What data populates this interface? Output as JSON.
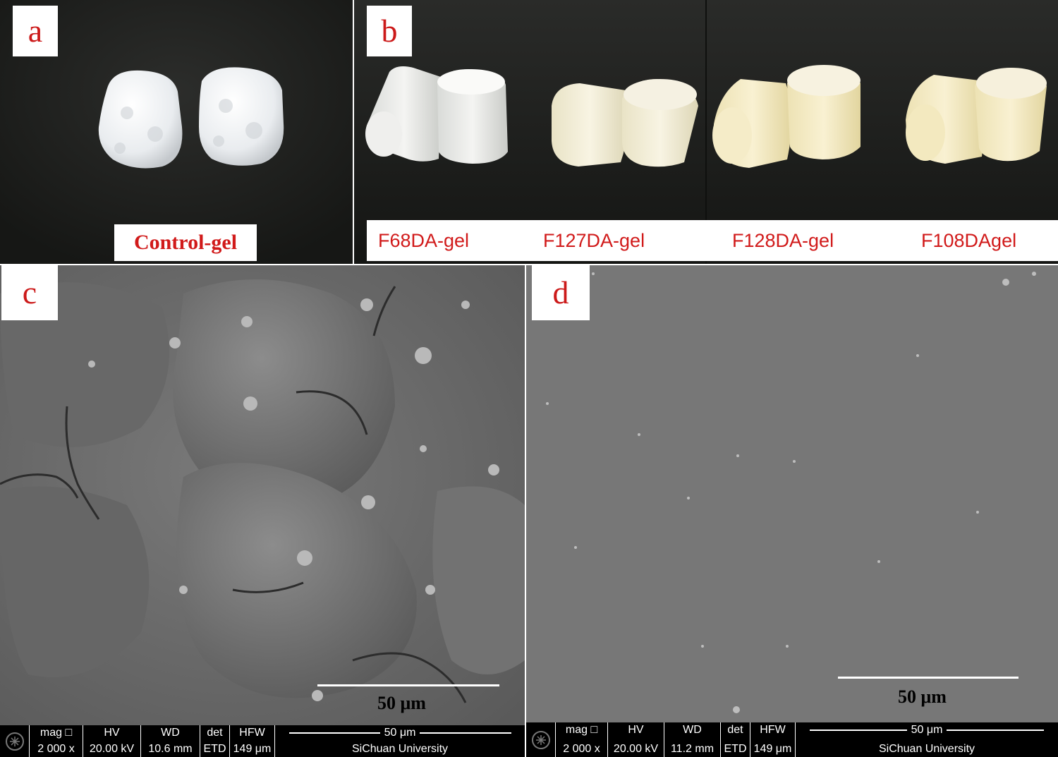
{
  "panels": {
    "a": {
      "label": "a",
      "caption": "Control-gel"
    },
    "b": {
      "label": "b",
      "captions": [
        "F68DA-gel",
        "F127DA-gel",
        "F128DA-gel",
        "F108DAgel"
      ]
    },
    "c": {
      "label": "c",
      "scale_label": "50 μm",
      "databar": {
        "mag_label": "mag",
        "mag_value": "2 000 x",
        "hv_label": "HV",
        "hv_value": "20.00 kV",
        "wd_label": "WD",
        "wd_value": "10.6 mm",
        "det_label": "det",
        "det_value": "ETD",
        "hfw_label": "HFW",
        "hfw_value": "149 μm",
        "scale": "50 μm",
        "institution": "SiChuan University"
      }
    },
    "d": {
      "label": "d",
      "scale_label": "50 μm",
      "databar": {
        "mag_label": "mag",
        "mag_value": "2 000 x",
        "hv_label": "HV",
        "hv_value": "20.00 kV",
        "wd_label": "WD",
        "wd_value": "11.2 mm",
        "det_label": "det",
        "det_value": "ETD",
        "hfw_label": "HFW",
        "hfw_value": "149 μm",
        "scale": "50 μm",
        "institution": "SiChuan University"
      }
    }
  },
  "colors": {
    "label_red": "#cc1a1a",
    "photo_bg": "#1e1f1d",
    "sem_gray": "#6e6e6e",
    "sem_d_gray": "#777777"
  }
}
